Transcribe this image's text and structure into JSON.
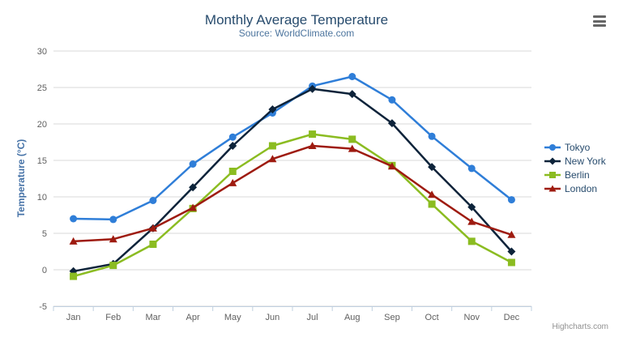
{
  "toolbar": {
    "menu_icon": "hamburger-icon"
  },
  "credits": {
    "label": "Highcharts.com"
  },
  "theme": {
    "background": "#ffffff",
    "title_color": "#274b6d",
    "subtitle_color": "#4d759e",
    "axis_label_color": "#606060",
    "axis_title_color": "#4572a7",
    "axis_line_color": "#c0d0e0",
    "grid_color": "#d8d8d8",
    "legend_text_color": "#274b6d",
    "credits_color": "#909090",
    "menu_icon_color": "#666666"
  },
  "chart_data": {
    "type": "line",
    "title": "Monthly Average Temperature",
    "subtitle": "Source: WorldClimate.com",
    "xlabel": "",
    "ylabel": "Temperature (°C)",
    "categories": [
      "Jan",
      "Feb",
      "Mar",
      "Apr",
      "May",
      "Jun",
      "Jul",
      "Aug",
      "Sep",
      "Oct",
      "Nov",
      "Dec"
    ],
    "ylim": [
      -5,
      30
    ],
    "ytick_interval": 5,
    "grid": true,
    "legend_position": "right",
    "series": [
      {
        "name": "Tokyo",
        "color": "#2f7ed8",
        "marker": "circle",
        "values": [
          7.0,
          6.9,
          9.5,
          14.5,
          18.2,
          21.5,
          25.2,
          26.5,
          23.3,
          18.3,
          13.9,
          9.6
        ]
      },
      {
        "name": "New York",
        "color": "#0d233a",
        "marker": "diamond",
        "values": [
          -0.2,
          0.8,
          5.7,
          11.3,
          17.0,
          22.0,
          24.8,
          24.1,
          20.1,
          14.1,
          8.6,
          2.5
        ]
      },
      {
        "name": "Berlin",
        "color": "#8bbc21",
        "marker": "square",
        "values": [
          -0.9,
          0.6,
          3.5,
          8.4,
          13.5,
          17.0,
          18.6,
          17.9,
          14.3,
          9.0,
          3.9,
          1.0
        ]
      },
      {
        "name": "London",
        "color": "#9e1b10",
        "marker": "triangle",
        "values": [
          3.9,
          4.2,
          5.7,
          8.5,
          11.9,
          15.2,
          17.0,
          16.6,
          14.2,
          10.3,
          6.6,
          4.8
        ]
      }
    ]
  }
}
